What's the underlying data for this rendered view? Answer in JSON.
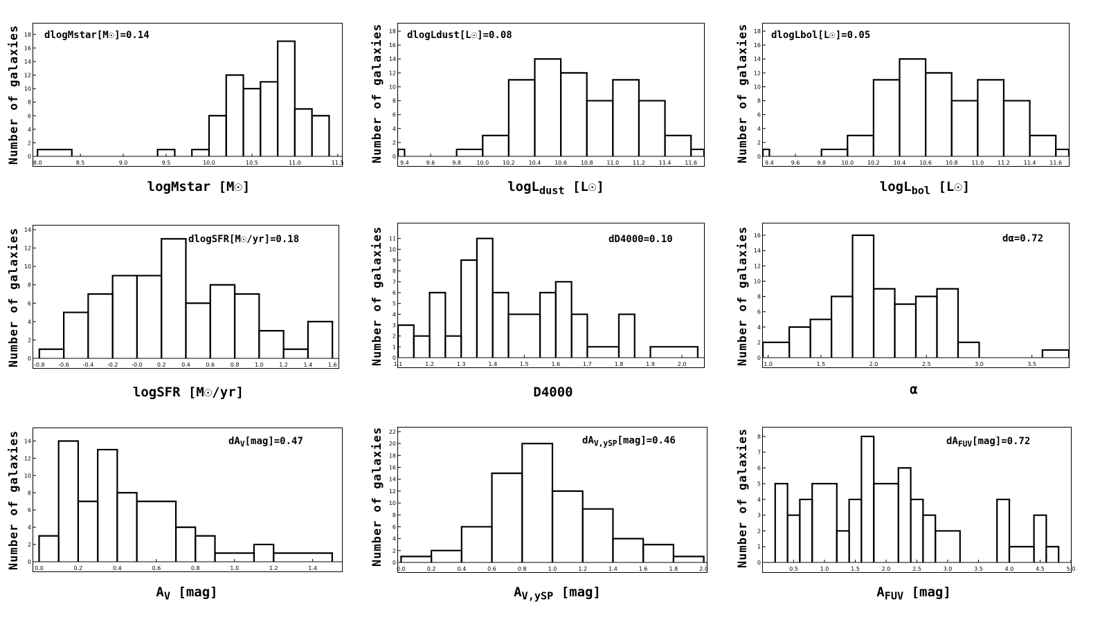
{
  "chart_data": [
    {
      "id": "p1",
      "type": "histogram",
      "ylabel": "Number of galaxies",
      "xlabel": "logMstar [M☉]",
      "annotation": "dlogMstar[M☉]=0.14",
      "xlim": [
        7.95,
        11.55
      ],
      "ylim": [
        0,
        19
      ],
      "xticks": [
        "8.0",
        "8.5",
        "9.0",
        "9.5",
        "10.0",
        "10.5",
        "11.0",
        "11.5"
      ],
      "yticks": [
        "0",
        "2",
        "4",
        "6",
        "8",
        "10",
        "12",
        "14",
        "16",
        "18"
      ],
      "bins": [
        [
          8.0,
          8.4,
          1
        ],
        [
          9.4,
          9.6,
          1
        ],
        [
          9.8,
          10.0,
          1
        ],
        [
          10.0,
          10.2,
          6
        ],
        [
          10.2,
          10.4,
          12
        ],
        [
          10.4,
          10.6,
          10
        ],
        [
          10.6,
          10.8,
          11
        ],
        [
          10.8,
          11.0,
          17
        ],
        [
          11.0,
          11.2,
          7
        ],
        [
          11.2,
          11.4,
          6
        ]
      ]
    },
    {
      "id": "p2",
      "type": "histogram",
      "ylabel": "Number of galaxies",
      "xlabel": "logL",
      "xlabel_sub": "dust",
      "xlabel_tail": " [L☉]",
      "annotation": "dlogLdust[L☉]=0.08",
      "xlim": [
        9.35,
        11.7
      ],
      "ylim": [
        0,
        18.5
      ],
      "xticks": [
        "9.4",
        "9.6",
        "9.8",
        "10.0",
        "10.2",
        "10.4",
        "10.6",
        "10.8",
        "11.0",
        "11.2",
        "11.4",
        "11.6"
      ],
      "yticks": [
        "0",
        "2",
        "4",
        "6",
        "8",
        "10",
        "12",
        "14",
        "16",
        "18"
      ],
      "bins": [
        [
          9.35,
          9.4,
          1
        ],
        [
          9.8,
          10.0,
          1
        ],
        [
          10.0,
          10.2,
          3
        ],
        [
          10.2,
          10.4,
          11
        ],
        [
          10.4,
          10.6,
          14
        ],
        [
          10.6,
          10.8,
          12
        ],
        [
          10.8,
          11.0,
          8
        ],
        [
          11.0,
          11.2,
          11
        ],
        [
          11.2,
          11.4,
          8
        ],
        [
          11.4,
          11.6,
          3
        ],
        [
          11.6,
          11.7,
          1
        ]
      ]
    },
    {
      "id": "p3",
      "type": "histogram",
      "ylabel": "Number of galaxies",
      "xlabel": "logL",
      "xlabel_sub": "bol",
      "xlabel_tail": " [L☉]",
      "annotation": "dlogLbol[L☉]=0.05",
      "xlim": [
        9.35,
        11.7
      ],
      "ylim": [
        0,
        18.5
      ],
      "xticks": [
        "9.4",
        "9.6",
        "9.8",
        "10.0",
        "10.2",
        "10.4",
        "10.6",
        "10.8",
        "11.0",
        "11.2",
        "11.4",
        "11.6"
      ],
      "yticks": [
        "0",
        "2",
        "4",
        "6",
        "8",
        "10",
        "12",
        "14",
        "16",
        "18"
      ],
      "bins": [
        [
          9.35,
          9.4,
          1
        ],
        [
          9.8,
          10.0,
          1
        ],
        [
          10.0,
          10.2,
          3
        ],
        [
          10.2,
          10.4,
          11
        ],
        [
          10.4,
          10.6,
          14
        ],
        [
          10.6,
          10.8,
          12
        ],
        [
          10.8,
          11.0,
          8
        ],
        [
          11.0,
          11.2,
          11
        ],
        [
          11.2,
          11.4,
          8
        ],
        [
          11.4,
          11.6,
          3
        ],
        [
          11.6,
          11.7,
          1
        ]
      ]
    },
    {
      "id": "p4",
      "type": "histogram",
      "ylabel": "Number of galaxies",
      "xlabel": "logSFR [M☉/yr]",
      "annotation": "dlogSFR[M☉/yr]=0.18",
      "xlim": [
        -0.85,
        1.65
      ],
      "ylim": [
        0,
        14
      ],
      "xticks": [
        "-0.8",
        "-0.6",
        "-0.4",
        "-0.2",
        "-0.0",
        "0.2",
        "0.4",
        "0.6",
        "0.8",
        "1.0",
        "1.2",
        "1.4",
        "1.6"
      ],
      "yticks": [
        "0",
        "2",
        "4",
        "6",
        "8",
        "10",
        "12",
        "14"
      ],
      "bins": [
        [
          -0.8,
          -0.6,
          1
        ],
        [
          -0.6,
          -0.4,
          5
        ],
        [
          -0.4,
          -0.2,
          7
        ],
        [
          -0.2,
          0.0,
          9
        ],
        [
          0.0,
          0.2,
          9
        ],
        [
          0.2,
          0.4,
          13
        ],
        [
          0.4,
          0.6,
          6
        ],
        [
          0.6,
          0.8,
          8
        ],
        [
          0.8,
          1.0,
          7
        ],
        [
          1.0,
          1.2,
          3
        ],
        [
          1.2,
          1.4,
          1
        ],
        [
          1.4,
          1.6,
          4
        ]
      ]
    },
    {
      "id": "p5",
      "type": "histogram",
      "ylabel": "Number of galaxies",
      "xlabel": "D4000",
      "annotation": "dD4000=0.10",
      "xlim": [
        1.1,
        2.07
      ],
      "ylim": [
        0,
        12
      ],
      "xticks": [
        "1.1",
        "1.2",
        "1.3",
        "1.4",
        "1.5",
        "1.6",
        "1.7",
        "1.8",
        "1.9",
        "2.0"
      ],
      "yticks": [
        "0",
        "1",
        "2",
        "3",
        "4",
        "5",
        "6",
        "7",
        "8",
        "9",
        "10",
        "11"
      ],
      "bins": [
        [
          1.1,
          1.15,
          3
        ],
        [
          1.15,
          1.2,
          2
        ],
        [
          1.2,
          1.25,
          6
        ],
        [
          1.25,
          1.3,
          2
        ],
        [
          1.3,
          1.35,
          9
        ],
        [
          1.35,
          1.4,
          11
        ],
        [
          1.4,
          1.45,
          6
        ],
        [
          1.45,
          1.55,
          4
        ],
        [
          1.55,
          1.6,
          6
        ],
        [
          1.6,
          1.65,
          7
        ],
        [
          1.65,
          1.7,
          4
        ],
        [
          1.7,
          1.8,
          1
        ],
        [
          1.8,
          1.85,
          4
        ],
        [
          1.9,
          2.05,
          1
        ]
      ]
    },
    {
      "id": "p6",
      "type": "histogram",
      "ylabel": "Number of galaxies",
      "xlabel": "α",
      "annotation": "dα=0.72",
      "xlim": [
        0.95,
        3.85
      ],
      "ylim": [
        0,
        17
      ],
      "xticks": [
        "1.0",
        "1.5",
        "2.0",
        "2.5",
        "3.0",
        "3.5"
      ],
      "yticks": [
        "0",
        "2",
        "4",
        "6",
        "8",
        "10",
        "12",
        "14",
        "16"
      ],
      "bins": [
        [
          0.95,
          1.2,
          2
        ],
        [
          1.2,
          1.4,
          4
        ],
        [
          1.4,
          1.6,
          5
        ],
        [
          1.6,
          1.8,
          8
        ],
        [
          1.8,
          2.0,
          16
        ],
        [
          2.0,
          2.2,
          9
        ],
        [
          2.2,
          2.4,
          7
        ],
        [
          2.4,
          2.6,
          8
        ],
        [
          2.6,
          2.8,
          9
        ],
        [
          2.8,
          3.0,
          2
        ],
        [
          3.6,
          3.85,
          1
        ]
      ]
    },
    {
      "id": "p7",
      "type": "histogram",
      "ylabel": "Number of galaxies",
      "xlabel": "A",
      "xlabel_sub": "V",
      "xlabel_tail": " [mag]",
      "annotation": "dA",
      "annotation_sub": "V",
      "annotation_tail": "[mag]=0.47",
      "xlim": [
        -0.03,
        1.55
      ],
      "ylim": [
        0,
        15
      ],
      "xticks": [
        "0.0",
        "0.2",
        "0.4",
        "0.6",
        "0.8",
        "1.0",
        "1.2",
        "1.4"
      ],
      "yticks": [
        "0",
        "2",
        "4",
        "6",
        "8",
        "10",
        "12",
        "14"
      ],
      "bins": [
        [
          0.0,
          0.1,
          3
        ],
        [
          0.1,
          0.2,
          14
        ],
        [
          0.2,
          0.3,
          7
        ],
        [
          0.3,
          0.4,
          13
        ],
        [
          0.4,
          0.5,
          8
        ],
        [
          0.5,
          0.7,
          7
        ],
        [
          0.7,
          0.8,
          4
        ],
        [
          0.8,
          0.9,
          3
        ],
        [
          0.9,
          1.1,
          1
        ],
        [
          1.1,
          1.2,
          2
        ],
        [
          1.2,
          1.5,
          1
        ]
      ]
    },
    {
      "id": "p8",
      "type": "histogram",
      "ylabel": "Number of galaxies",
      "xlabel": "A",
      "xlabel_sub": "V,ySP",
      "xlabel_tail": " [mag]",
      "annotation": "dA",
      "annotation_sub": "V,ySP",
      "annotation_tail": "[mag]=0.46",
      "xlim": [
        -0.02,
        2.02
      ],
      "ylim": [
        0,
        22
      ],
      "xticks": [
        "0.0",
        "0.2",
        "0.4",
        "0.6",
        "0.8",
        "1.0",
        "1.2",
        "1.4",
        "1.6",
        "1.8",
        "2.0"
      ],
      "yticks": [
        "0",
        "2",
        "4",
        "6",
        "8",
        "10",
        "12",
        "14",
        "16",
        "18",
        "20",
        "22"
      ],
      "bins": [
        [
          0.0,
          0.2,
          1
        ],
        [
          0.2,
          0.4,
          2
        ],
        [
          0.4,
          0.6,
          6
        ],
        [
          0.6,
          0.8,
          15
        ],
        [
          0.8,
          1.0,
          20
        ],
        [
          1.0,
          1.2,
          12
        ],
        [
          1.2,
          1.4,
          9
        ],
        [
          1.4,
          1.6,
          4
        ],
        [
          1.6,
          1.8,
          3
        ],
        [
          1.8,
          2.0,
          1
        ]
      ]
    },
    {
      "id": "p9",
      "type": "histogram",
      "ylabel": "Number of galaxies",
      "xlabel": "A",
      "xlabel_sub": "FUV",
      "xlabel_tail": " [mag]",
      "annotation": "dA",
      "annotation_sub": "FUV",
      "annotation_tail": "[mag]=0.72",
      "xlim": [
        0.0,
        5.0
      ],
      "ylim": [
        0,
        8.3
      ],
      "xticks": [
        "0.5",
        "1.0",
        "1.5",
        "2.0",
        "2.5",
        "3.0",
        "3.5",
        "4.0",
        "4.5",
        "5.0"
      ],
      "yticks": [
        "0",
        "1",
        "2",
        "3",
        "4",
        "5",
        "6",
        "7",
        "8"
      ],
      "bins": [
        [
          0.2,
          0.4,
          5
        ],
        [
          0.4,
          0.6,
          3
        ],
        [
          0.6,
          0.8,
          4
        ],
        [
          0.8,
          1.2,
          5
        ],
        [
          1.2,
          1.4,
          2
        ],
        [
          1.4,
          1.6,
          4
        ],
        [
          1.6,
          1.8,
          8
        ],
        [
          1.8,
          2.2,
          5
        ],
        [
          2.2,
          2.4,
          6
        ],
        [
          2.4,
          2.6,
          4
        ],
        [
          2.6,
          2.8,
          3
        ],
        [
          2.8,
          3.2,
          2
        ],
        [
          3.8,
          4.0,
          4
        ],
        [
          4.0,
          4.4,
          1
        ],
        [
          4.4,
          4.6,
          3
        ],
        [
          4.6,
          4.8,
          1
        ]
      ]
    }
  ]
}
